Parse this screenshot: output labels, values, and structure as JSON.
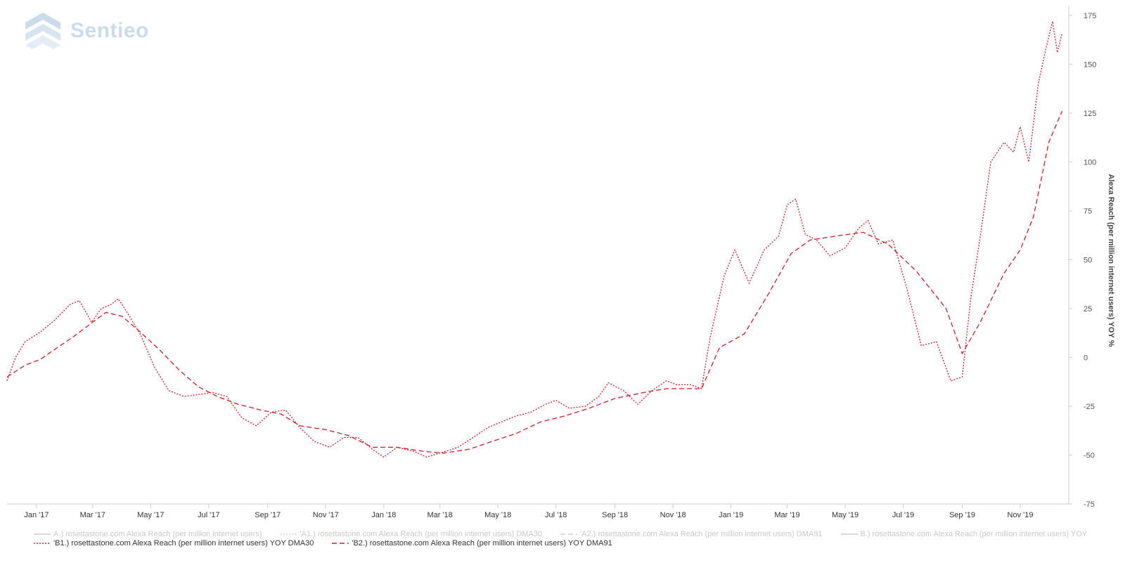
{
  "logo": {
    "text": "Sentieo",
    "icon": "sentieo-logo-icon"
  },
  "colors": {
    "series_b1": "#c0222b",
    "series_b2": "#c0222b",
    "faded": "#cfcfcf",
    "axis": "#cccccc"
  },
  "chart_data": {
    "type": "line",
    "title": "",
    "xlabel": "",
    "ylabel": "Alexa Reach (per million internet users) YOY %",
    "y_axis_position": "right",
    "ylim": [
      -75,
      180
    ],
    "yticks": [
      -75,
      -50,
      -25,
      0,
      25,
      50,
      75,
      100,
      125,
      150,
      175
    ],
    "xlim": [
      "2016-12-01",
      "2019-12-22"
    ],
    "xticks": [
      {
        "label": "Jan '17",
        "date": "2017-01-01"
      },
      {
        "label": "Mar '17",
        "date": "2017-03-01"
      },
      {
        "label": "May '17",
        "date": "2017-05-01"
      },
      {
        "label": "Jul '17",
        "date": "2017-07-01"
      },
      {
        "label": "Sep '17",
        "date": "2017-09-01"
      },
      {
        "label": "Nov '17",
        "date": "2017-11-01"
      },
      {
        "label": "Jan '18",
        "date": "2018-01-01"
      },
      {
        "label": "Mar '18",
        "date": "2018-03-01"
      },
      {
        "label": "May '18",
        "date": "2018-05-01"
      },
      {
        "label": "Jul '18",
        "date": "2018-07-01"
      },
      {
        "label": "Sep '18",
        "date": "2018-09-01"
      },
      {
        "label": "Nov '18",
        "date": "2018-11-01"
      },
      {
        "label": "Jan '19",
        "date": "2019-01-01"
      },
      {
        "label": "Mar '19",
        "date": "2019-03-01"
      },
      {
        "label": "May '19",
        "date": "2019-05-01"
      },
      {
        "label": "Jul '19",
        "date": "2019-07-01"
      },
      {
        "label": "Sep '19",
        "date": "2019-09-01"
      },
      {
        "label": "Nov '19",
        "date": "2019-11-01"
      }
    ],
    "grid": false,
    "legend_position": "bottom",
    "legend": [
      {
        "label": "A.) rosettastone.com Alexa Reach (per million internet users)",
        "style": "solid",
        "state": "hidden"
      },
      {
        "label": "'A1.) rosettastone.com Alexa Reach (per million internet users) DMA30",
        "style": "dotted",
        "state": "hidden"
      },
      {
        "label": "'A2.) rosettastone.com Alexa Reach (per million internet users) DMA91",
        "style": "dashed",
        "state": "hidden"
      },
      {
        "label": "B.) rosettastone.com Alexa Reach (per million internet users) YOY",
        "style": "solid",
        "state": "hidden"
      },
      {
        "label": "'B1.) rosettastone.com Alexa Reach (per million internet users) YOY DMA30",
        "style": "dotted",
        "state": "visible"
      },
      {
        "label": "'B2.) rosettastone.com Alexa Reach (per million internet users) YOY DMA91",
        "style": "dashed",
        "state": "visible"
      }
    ],
    "series": [
      {
        "name": "'B1.) rosettastone.com Alexa Reach (per million internet users) YOY DMA30",
        "style": "dotted",
        "points": [
          [
            "2016-12-01",
            -12
          ],
          [
            "2016-12-10",
            0
          ],
          [
            "2016-12-20",
            8
          ],
          [
            "2017-01-05",
            13
          ],
          [
            "2017-01-20",
            19
          ],
          [
            "2017-02-05",
            27
          ],
          [
            "2017-02-15",
            29
          ],
          [
            "2017-02-28",
            18
          ],
          [
            "2017-03-10",
            25
          ],
          [
            "2017-03-20",
            27
          ],
          [
            "2017-03-28",
            30
          ],
          [
            "2017-04-05",
            24
          ],
          [
            "2017-04-20",
            12
          ],
          [
            "2017-05-05",
            -5
          ],
          [
            "2017-05-20",
            -17
          ],
          [
            "2017-06-05",
            -20
          ],
          [
            "2017-06-20",
            -19
          ],
          [
            "2017-07-05",
            -18
          ],
          [
            "2017-07-20",
            -20
          ],
          [
            "2017-08-05",
            -31
          ],
          [
            "2017-08-20",
            -35
          ],
          [
            "2017-09-05",
            -28
          ],
          [
            "2017-09-20",
            -27
          ],
          [
            "2017-10-05",
            -36
          ],
          [
            "2017-10-20",
            -43
          ],
          [
            "2017-11-05",
            -46
          ],
          [
            "2017-11-20",
            -41
          ],
          [
            "2017-12-05",
            -41
          ],
          [
            "2017-12-20",
            -47
          ],
          [
            "2018-01-01",
            -51
          ],
          [
            "2018-01-15",
            -46
          ],
          [
            "2018-02-01",
            -48
          ],
          [
            "2018-02-15",
            -51
          ],
          [
            "2018-03-01",
            -49
          ],
          [
            "2018-03-20",
            -46
          ],
          [
            "2018-04-05",
            -41
          ],
          [
            "2018-04-20",
            -36
          ],
          [
            "2018-05-05",
            -33
          ],
          [
            "2018-05-20",
            -30
          ],
          [
            "2018-06-05",
            -28
          ],
          [
            "2018-06-20",
            -24
          ],
          [
            "2018-07-01",
            -22
          ],
          [
            "2018-07-15",
            -26
          ],
          [
            "2018-08-01",
            -25
          ],
          [
            "2018-08-15",
            -20
          ],
          [
            "2018-08-25",
            -13
          ],
          [
            "2018-09-10",
            -17
          ],
          [
            "2018-09-25",
            -24
          ],
          [
            "2018-10-10",
            -17
          ],
          [
            "2018-10-25",
            -12
          ],
          [
            "2018-11-05",
            -14
          ],
          [
            "2018-11-20",
            -14
          ],
          [
            "2018-12-01",
            -16
          ],
          [
            "2018-12-10",
            10
          ],
          [
            "2018-12-25",
            42
          ],
          [
            "2019-01-05",
            55
          ],
          [
            "2019-01-20",
            38
          ],
          [
            "2019-02-05",
            55
          ],
          [
            "2019-02-20",
            62
          ],
          [
            "2019-03-01",
            78
          ],
          [
            "2019-03-10",
            81
          ],
          [
            "2019-03-20",
            63
          ],
          [
            "2019-04-01",
            60
          ],
          [
            "2019-04-15",
            52
          ],
          [
            "2019-05-01",
            56
          ],
          [
            "2019-05-15",
            66
          ],
          [
            "2019-05-25",
            70
          ],
          [
            "2019-06-05",
            58
          ],
          [
            "2019-06-20",
            60
          ],
          [
            "2019-07-05",
            35
          ],
          [
            "2019-07-20",
            6
          ],
          [
            "2019-08-05",
            8
          ],
          [
            "2019-08-20",
            -12
          ],
          [
            "2019-09-01",
            -10
          ],
          [
            "2019-09-10",
            30
          ],
          [
            "2019-09-20",
            62
          ],
          [
            "2019-10-01",
            100
          ],
          [
            "2019-10-15",
            110
          ],
          [
            "2019-10-25",
            105
          ],
          [
            "2019-11-01",
            118
          ],
          [
            "2019-11-10",
            100
          ],
          [
            "2019-11-20",
            140
          ],
          [
            "2019-11-28",
            158
          ],
          [
            "2019-12-05",
            172
          ],
          [
            "2019-12-10",
            156
          ],
          [
            "2019-12-15",
            166
          ]
        ]
      },
      {
        "name": "'B2.) rosettastone.com Alexa Reach (per million internet users) YOY DMA91",
        "style": "dashed",
        "points": [
          [
            "2016-12-01",
            -10
          ],
          [
            "2016-12-20",
            -4
          ],
          [
            "2017-01-05",
            -1
          ],
          [
            "2017-01-20",
            4
          ],
          [
            "2017-02-10",
            11
          ],
          [
            "2017-03-01",
            18
          ],
          [
            "2017-03-15",
            23
          ],
          [
            "2017-04-01",
            21
          ],
          [
            "2017-04-20",
            13
          ],
          [
            "2017-05-10",
            4
          ],
          [
            "2017-06-01",
            -7
          ],
          [
            "2017-06-20",
            -15
          ],
          [
            "2017-07-10",
            -20
          ],
          [
            "2017-08-01",
            -24
          ],
          [
            "2017-08-25",
            -27
          ],
          [
            "2017-09-15",
            -29
          ],
          [
            "2017-10-05",
            -35
          ],
          [
            "2017-11-01",
            -37
          ],
          [
            "2017-11-25",
            -40
          ],
          [
            "2017-12-20",
            -46
          ],
          [
            "2018-01-15",
            -46
          ],
          [
            "2018-02-10",
            -48
          ],
          [
            "2018-03-05",
            -49
          ],
          [
            "2018-04-01",
            -47
          ],
          [
            "2018-04-25",
            -43
          ],
          [
            "2018-05-20",
            -39
          ],
          [
            "2018-06-15",
            -33
          ],
          [
            "2018-07-10",
            -30
          ],
          [
            "2018-08-05",
            -26
          ],
          [
            "2018-09-01",
            -21
          ],
          [
            "2018-10-01",
            -18
          ],
          [
            "2018-10-25",
            -16
          ],
          [
            "2018-12-01",
            -16
          ],
          [
            "2018-12-20",
            5
          ],
          [
            "2019-01-15",
            12
          ],
          [
            "2019-02-10",
            33
          ],
          [
            "2019-03-05",
            53
          ],
          [
            "2019-03-25",
            60
          ],
          [
            "2019-04-20",
            62
          ],
          [
            "2019-05-20",
            64
          ],
          [
            "2019-06-15",
            58
          ],
          [
            "2019-07-15",
            44
          ],
          [
            "2019-08-15",
            25
          ],
          [
            "2019-09-01",
            2
          ],
          [
            "2019-09-20",
            18
          ],
          [
            "2019-10-15",
            43
          ],
          [
            "2019-11-01",
            55
          ],
          [
            "2019-11-15",
            72
          ],
          [
            "2019-12-01",
            110
          ],
          [
            "2019-12-15",
            126
          ]
        ]
      }
    ]
  }
}
